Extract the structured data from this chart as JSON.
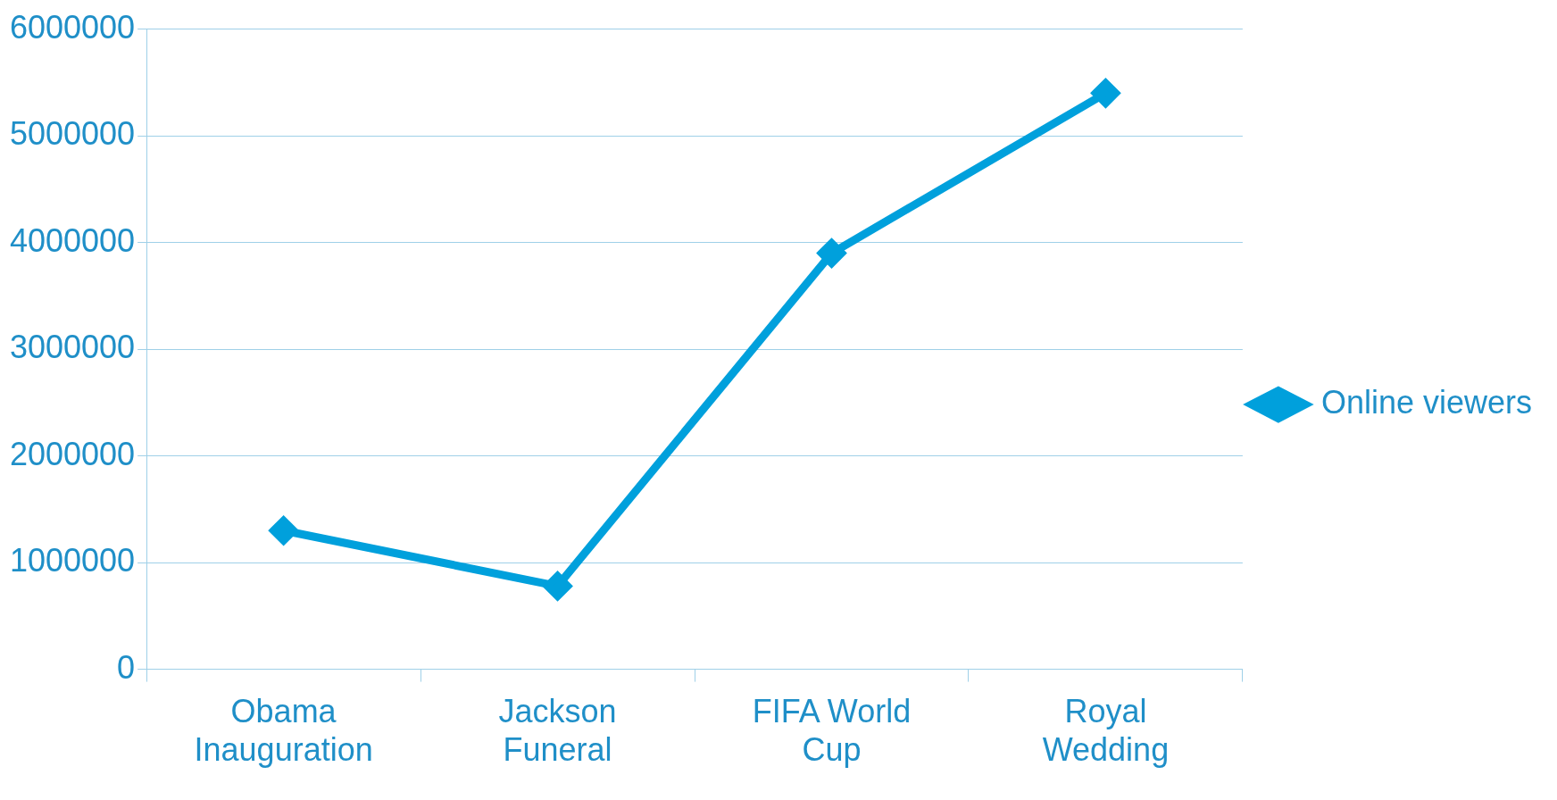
{
  "chart_data": {
    "type": "line",
    "categories": [
      "Obama Inauguration",
      "Jackson Funeral",
      "FIFA World Cup",
      "Royal Wedding"
    ],
    "series": [
      {
        "name": "Online viewers",
        "color": "#00a0dc",
        "values": [
          1300000,
          780000,
          3900000,
          5400000
        ]
      }
    ],
    "ylim": [
      0,
      6000000
    ],
    "yticks": [
      0,
      1000000,
      2000000,
      3000000,
      4000000,
      5000000,
      6000000
    ],
    "grid": "y",
    "legend": "right",
    "marker": "diamond",
    "line_style": "solid"
  }
}
